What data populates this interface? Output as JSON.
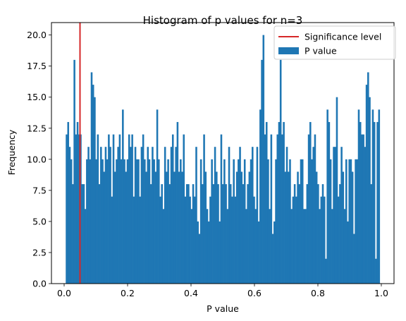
{
  "chart_data": {
    "type": "bar",
    "title": "Histogram of p values for n=3",
    "xlabel": "P value",
    "ylabel": "Frequency",
    "xlim": [
      -0.04,
      1.04
    ],
    "ylim": [
      0,
      21
    ],
    "xticks": [
      0.0,
      0.2,
      0.4,
      0.6,
      0.8,
      1.0
    ],
    "xtick_labels": [
      "0.0",
      "0.2",
      "0.4",
      "0.6",
      "0.8",
      "1.0"
    ],
    "yticks": [
      0,
      2.5,
      5,
      7.5,
      10,
      12.5,
      15,
      17.5,
      20
    ],
    "ytick_labels": [
      "0.0",
      "2.5",
      "5.0",
      "7.5",
      "10.0",
      "12.5",
      "15.0",
      "17.5",
      "20.0"
    ],
    "grid": false,
    "legend_position": "top-right",
    "bins": {
      "start": 0.005,
      "end": 0.995,
      "counts": [
        12,
        13,
        11,
        10,
        8,
        18,
        12,
        13,
        12,
        12,
        8,
        8,
        6,
        10,
        11,
        10,
        17,
        16,
        15,
        10,
        12,
        8,
        11,
        10,
        9,
        11,
        10,
        12,
        11,
        7,
        12,
        9,
        10,
        11,
        12,
        10,
        14,
        10,
        9,
        10,
        12,
        11,
        12,
        7,
        11,
        10,
        10,
        7,
        11,
        12,
        10,
        9,
        11,
        10,
        8,
        11,
        10,
        9,
        14,
        10,
        7,
        8,
        6,
        11,
        9,
        10,
        8,
        11,
        12,
        9,
        11,
        13,
        9,
        10,
        9,
        12,
        7,
        8,
        8,
        7,
        6,
        8,
        7,
        11,
        5,
        4,
        10,
        8,
        12,
        9,
        6,
        5,
        7,
        10,
        8,
        11,
        9,
        8,
        5,
        12,
        8,
        10,
        8,
        6,
        11,
        8,
        7,
        10,
        7,
        9,
        10,
        11,
        9,
        8,
        10,
        6,
        8,
        9,
        10,
        11,
        7,
        6,
        11,
        5,
        14,
        18,
        20,
        12,
        13,
        10,
        6,
        12,
        4,
        5,
        10,
        12,
        13,
        18,
        12,
        13,
        9,
        11,
        9,
        10,
        6,
        7,
        8,
        7,
        9,
        8,
        10,
        10,
        6,
        6,
        8,
        12,
        13,
        10,
        11,
        12,
        9,
        8,
        6,
        7,
        8,
        7,
        2,
        14,
        13,
        10,
        6,
        11,
        11,
        15,
        7,
        8,
        11,
        9,
        6,
        10,
        5,
        10,
        10,
        9,
        4,
        10,
        10,
        14,
        13,
        12,
        12,
        11,
        16,
        17,
        15,
        8,
        14,
        13,
        2,
        13,
        14
      ],
      "color": "#1f77b4"
    },
    "significance_line": {
      "x": 0.05,
      "color": "#d62728"
    },
    "legend": [
      {
        "label": "Significance level",
        "kind": "line",
        "color": "#d62728"
      },
      {
        "label": "P value",
        "kind": "patch",
        "color": "#1f77b4"
      }
    ]
  }
}
